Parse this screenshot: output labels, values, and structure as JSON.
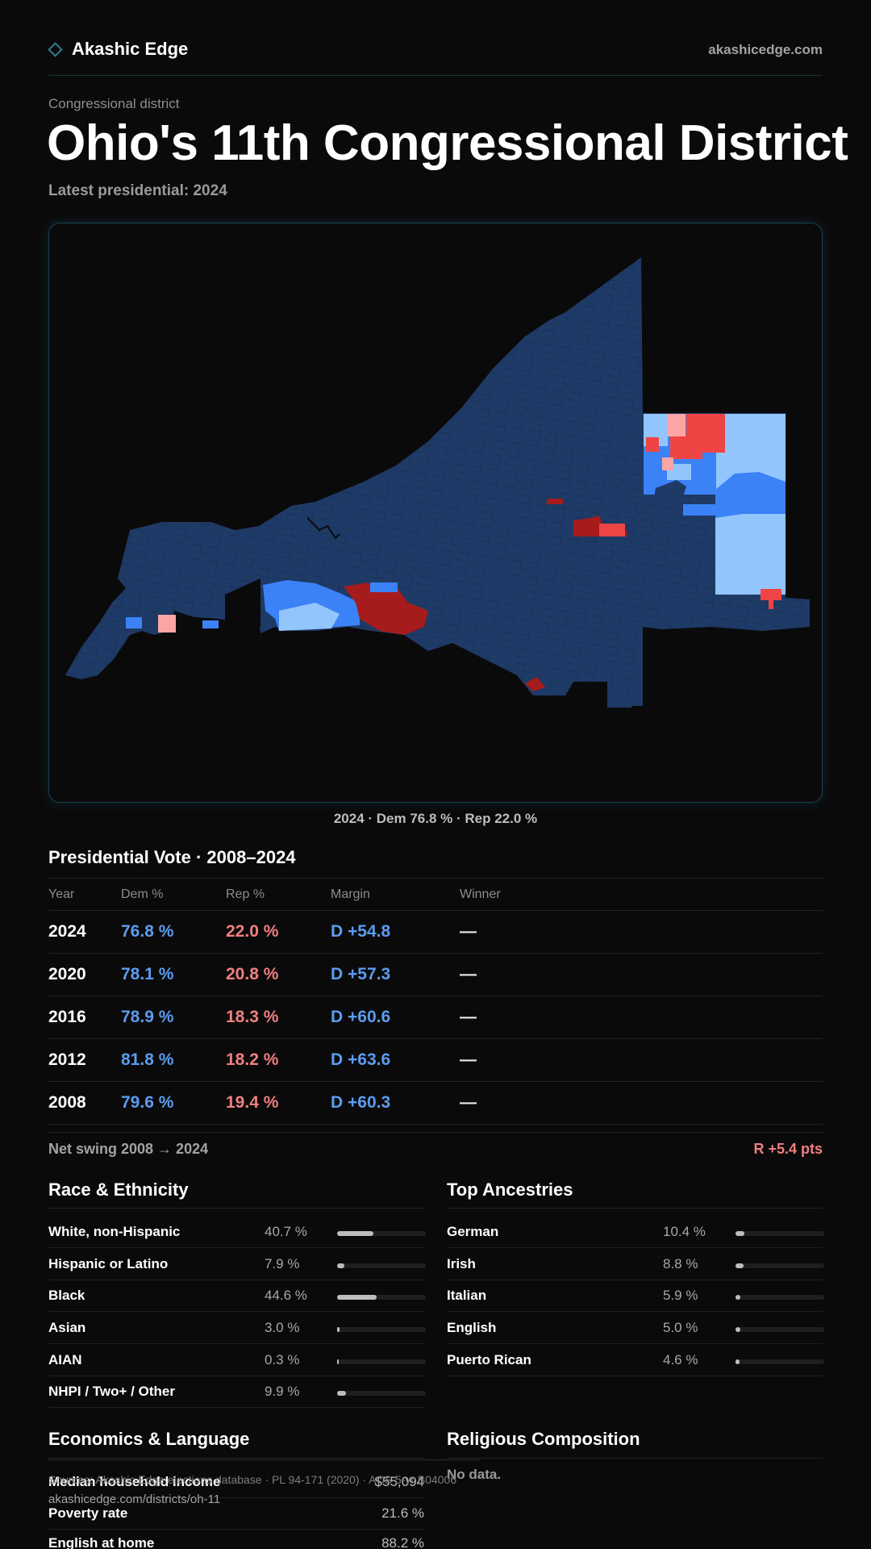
{
  "brand": {
    "name": "Akashic Edge",
    "url": "akashicedge.com"
  },
  "page": {
    "eyebrow": "Congressional district",
    "title": "Ohio's 11th Congressional District",
    "subtitle": "Latest presidential: 2024"
  },
  "map": {
    "caption": "2024 · Dem 76.8 % · Rep 22.0 %",
    "colors": {
      "strong_dem": "#1e3a66",
      "dem": "#3b82f6",
      "lean_dem": "#93c5fd",
      "lean_rep": "#fca5a5",
      "rep": "#ef4444",
      "strong_rep": "#a61b1b"
    }
  },
  "presidential": {
    "title": "Presidential Vote · 2008–2024",
    "headers": [
      "Year",
      "Dem %",
      "Rep %",
      "Margin",
      "Winner"
    ],
    "rows": [
      {
        "year": "2024",
        "dem": "76.8 %",
        "rep": "22.0 %",
        "margin": "D +54.8",
        "winner": "—"
      },
      {
        "year": "2020",
        "dem": "78.1 %",
        "rep": "20.8 %",
        "margin": "D +57.3",
        "winner": "—"
      },
      {
        "year": "2016",
        "dem": "78.9 %",
        "rep": "18.3 %",
        "margin": "D +60.6",
        "winner": "—"
      },
      {
        "year": "2012",
        "dem": "81.8 %",
        "rep": "18.2 %",
        "margin": "D +63.6",
        "winner": "—"
      },
      {
        "year": "2008",
        "dem": "79.6 %",
        "rep": "19.4 %",
        "margin": "D +60.3",
        "winner": "—"
      }
    ],
    "swing_label": "Net swing 2008 → 2024",
    "swing_value": "R +5.4 pts"
  },
  "race": {
    "title": "Race & Ethnicity",
    "items": [
      {
        "label": "White, non-Hispanic",
        "pct": "40.7 %",
        "value": 40.7
      },
      {
        "label": "Hispanic or Latino",
        "pct": "7.9 %",
        "value": 7.9
      },
      {
        "label": "Black",
        "pct": "44.6 %",
        "value": 44.6
      },
      {
        "label": "Asian",
        "pct": "3.0 %",
        "value": 3.0
      },
      {
        "label": "AIAN",
        "pct": "0.3 %",
        "value": 0.3
      },
      {
        "label": "NHPI / Two+ / Other",
        "pct": "9.9 %",
        "value": 9.9
      }
    ]
  },
  "ancestry": {
    "title": "Top Ancestries",
    "items": [
      {
        "label": "German",
        "pct": "10.4 %",
        "value": 10.4
      },
      {
        "label": "Irish",
        "pct": "8.8 %",
        "value": 8.8
      },
      {
        "label": "Italian",
        "pct": "5.9 %",
        "value": 5.9
      },
      {
        "label": "English",
        "pct": "5.0 %",
        "value": 5.0
      },
      {
        "label": "Puerto Rican",
        "pct": "4.6 %",
        "value": 4.6
      }
    ]
  },
  "economics": {
    "title": "Economics & Language",
    "items": [
      {
        "label": "Median household income",
        "value": "$55,094"
      },
      {
        "label": "Poverty rate",
        "value": "21.6 %"
      },
      {
        "label": "English at home",
        "value": "88.2 %"
      }
    ]
  },
  "religion": {
    "title": "Religious Composition",
    "empty": "No data."
  },
  "footer": {
    "source": "Sources: Akashic Edge elections database · PL 94-171 (2020) · ACS 5-yr B04006",
    "url": "akashicedge.com/districts/oh-11"
  }
}
